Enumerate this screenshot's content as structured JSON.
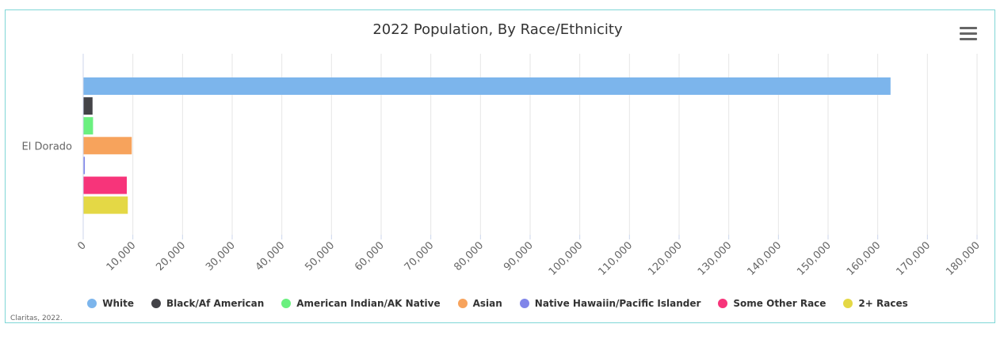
{
  "chart_data": {
    "type": "bar",
    "orientation": "horizontal",
    "title": "2022 Population, By Race/Ethnicity",
    "categories": [
      "El Dorado"
    ],
    "series": [
      {
        "name": "White",
        "values": [
          162500
        ],
        "color": "#7cb5ec"
      },
      {
        "name": "Black/Af American",
        "values": [
          1800
        ],
        "color": "#434348"
      },
      {
        "name": "American Indian/AK Native",
        "values": [
          1900
        ],
        "color": "#6af07f"
      },
      {
        "name": "Asian",
        "values": [
          9700
        ],
        "color": "#f7a35c"
      },
      {
        "name": "Native Hawaiin/Pacific Islander",
        "values": [
          250
        ],
        "color": "#8085e9"
      },
      {
        "name": "Some Other Race",
        "values": [
          8700
        ],
        "color": "#f7347a"
      },
      {
        "name": "2+ Races",
        "values": [
          8900
        ],
        "color": "#e4d845"
      }
    ],
    "xlim": [
      0,
      180000
    ],
    "x_ticks": [
      "0",
      "10,000",
      "20,000",
      "30,000",
      "40,000",
      "50,000",
      "60,000",
      "70,000",
      "80,000",
      "90,000",
      "100,000",
      "110,000",
      "120,000",
      "130,000",
      "140,000",
      "150,000",
      "160,000",
      "170,000",
      "180,000"
    ],
    "grid": true,
    "legend_position": "bottom"
  },
  "credits": "Claritas, 2022.",
  "menu_icon": "hamburger-menu-icon"
}
